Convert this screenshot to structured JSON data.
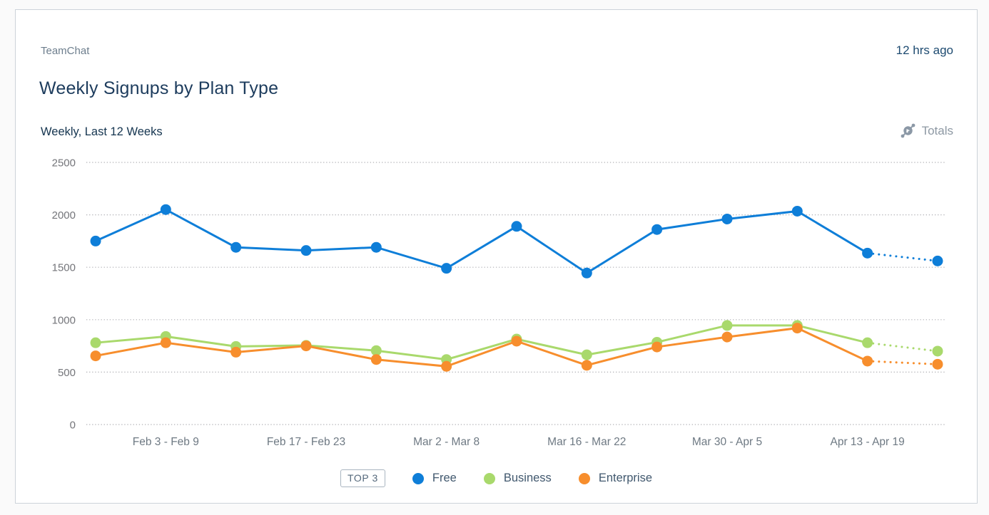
{
  "header": {
    "app_name": "TeamChat",
    "updated": "12 hrs ago",
    "title": "Weekly Signups by Plan Type",
    "subtitle": "Weekly, Last 12 Weeks",
    "totals_label": "Totals"
  },
  "legend": {
    "badge": "TOP 3"
  },
  "chart_data": {
    "type": "line",
    "title": "Weekly Signups by Plan Type",
    "subtitle": "Weekly, Last 12 Weeks",
    "num_points": 13,
    "x_tick_labels": [
      "Feb 3 - Feb 9",
      "Feb 17 - Feb 23",
      "Mar 2 - Mar 8",
      "Mar 16 - Mar 22",
      "Mar 30 - Apr 5",
      "Apr 13 - Apr 19"
    ],
    "x_tick_indices": [
      1,
      3,
      5,
      7,
      9,
      11
    ],
    "y_ticks": [
      0,
      500,
      1000,
      1500,
      2000,
      2500
    ],
    "ylim": [
      0,
      2500
    ],
    "grid": "dotted-horizontal",
    "legend_position": "bottom",
    "last_segment_projected_dotted": true,
    "series": [
      {
        "name": "Free",
        "color": "#0e7ed8",
        "values": [
          1750,
          2050,
          1690,
          1660,
          1690,
          1490,
          1890,
          1445,
          1860,
          1960,
          2035,
          1635,
          1560
        ]
      },
      {
        "name": "Business",
        "color": "#a9d96c",
        "values": [
          780,
          840,
          745,
          755,
          705,
          620,
          815,
          665,
          785,
          945,
          945,
          780,
          700
        ]
      },
      {
        "name": "Enterprise",
        "color": "#f78e2d",
        "values": [
          655,
          780,
          690,
          750,
          620,
          555,
          795,
          565,
          740,
          835,
          920,
          605,
          575
        ]
      }
    ],
    "style": {
      "grid_color": "#b0b0b5",
      "axis_label_color": "#74757a",
      "x_label_color": "#6e7983"
    }
  }
}
